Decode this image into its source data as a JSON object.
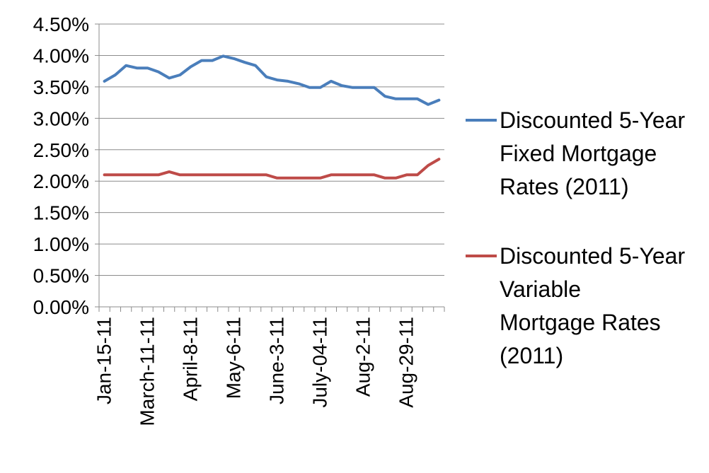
{
  "chart_data": {
    "type": "line",
    "title": "",
    "xlabel": "",
    "ylabel": "",
    "ylim": [
      0,
      4.5
    ],
    "y_ticks": [
      "0.00%",
      "0.50%",
      "1.00%",
      "1.50%",
      "2.00%",
      "2.50%",
      "3.00%",
      "3.50%",
      "4.00%",
      "4.50%"
    ],
    "x_tick_labels": [
      "Jan-15-11",
      "March-11-11",
      "April-8-11",
      "May-6-11",
      "June-3-11",
      "July-04-11",
      "Aug-2-11",
      "Aug-29-11"
    ],
    "x_tick_label_index": [
      0,
      4,
      8,
      12,
      16,
      20,
      24,
      28
    ],
    "grid": "horizontal",
    "legend_position": "right",
    "series": [
      {
        "name_lines": [
          "Discounted 5-Year",
          "Fixed Mortgage",
          "Rates (2011)"
        ],
        "color": "#4a7ebb",
        "values": [
          3.59,
          3.69,
          3.84,
          3.8,
          3.8,
          3.74,
          3.64,
          3.69,
          3.82,
          3.92,
          3.92,
          3.99,
          3.95,
          3.89,
          3.84,
          3.66,
          3.61,
          3.59,
          3.55,
          3.49,
          3.49,
          3.59,
          3.52,
          3.49,
          3.49,
          3.49,
          3.35,
          3.31,
          3.31,
          3.31,
          3.22,
          3.29
        ]
      },
      {
        "name_lines": [
          "Discounted 5-Year",
          "Variable",
          "Mortgage Rates",
          "(2011)"
        ],
        "color": "#be4b48",
        "values": [
          2.1,
          2.1,
          2.1,
          2.1,
          2.1,
          2.1,
          2.15,
          2.1,
          2.1,
          2.1,
          2.1,
          2.1,
          2.1,
          2.1,
          2.1,
          2.1,
          2.05,
          2.05,
          2.05,
          2.05,
          2.05,
          2.1,
          2.1,
          2.1,
          2.1,
          2.1,
          2.05,
          2.05,
          2.1,
          2.1,
          2.25,
          2.35
        ]
      }
    ]
  }
}
